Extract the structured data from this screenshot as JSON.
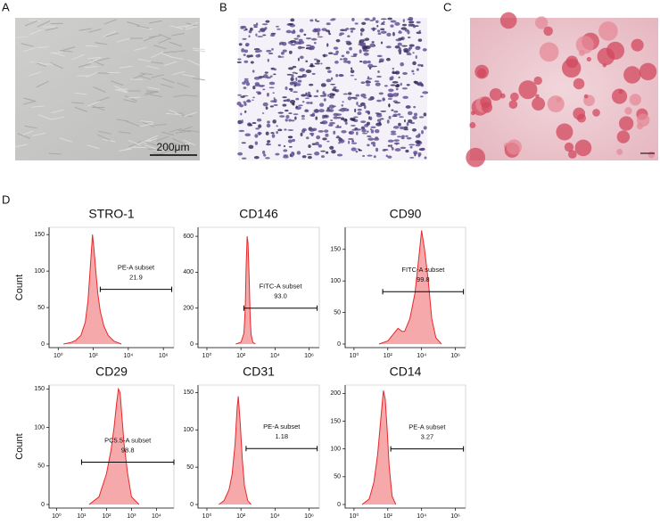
{
  "panel_labels": [
    "A",
    "B",
    "C",
    "D"
  ],
  "scale_bar": "200μm",
  "chart_data": [
    {
      "type": "histogram",
      "title": "STRO-1",
      "ylabel": "Count",
      "color": "#e8282b",
      "xscale": "log",
      "x": [
        2,
        5,
        10,
        20,
        35,
        50,
        70,
        90,
        110,
        140,
        180,
        250,
        400,
        700,
        1500,
        4000
      ],
      "values": [
        0,
        2,
        5,
        12,
        30,
        60,
        110,
        150,
        130,
        100,
        70,
        45,
        25,
        12,
        4,
        0
      ],
      "xlim": [
        0.3,
        4000000
      ],
      "ylim": [
        0,
        160
      ],
      "yticks": [
        0,
        50,
        100,
        150
      ],
      "xticks": [
        {
          "value": 1,
          "label": "10⁰"
        },
        {
          "value": 100,
          "label": "10²"
        },
        {
          "value": 10000,
          "label": "10⁴"
        },
        {
          "value": 1000000,
          "label": "10⁶"
        }
      ],
      "gate": {
        "name": "PE-A subset",
        "value": 21.9,
        "range": [
          250,
          3000000
        ],
        "y": 75
      }
    },
    {
      "type": "histogram",
      "title": "CD146",
      "color": "#e8282b",
      "xscale": "log",
      "x": [
        50,
        100,
        150,
        180,
        200,
        230,
        260,
        300,
        350,
        400,
        500,
        700
      ],
      "values": [
        0,
        10,
        60,
        200,
        420,
        600,
        560,
        380,
        150,
        50,
        10,
        0
      ],
      "xlim": [
        0.3,
        4000000
      ],
      "ylim": [
        0,
        650
      ],
      "yticks": [
        0,
        200,
        400,
        600
      ],
      "xticks": [
        {
          "value": 1,
          "label": "10⁰"
        },
        {
          "value": 100,
          "label": "10²"
        },
        {
          "value": 10000,
          "label": "10⁴"
        },
        {
          "value": 1000000,
          "label": "10⁶"
        }
      ],
      "gate": {
        "name": "FITC-A subset",
        "value": 93,
        "value_label": "93.0",
        "range": [
          150,
          3000000
        ],
        "y": 200
      }
    },
    {
      "type": "histogram",
      "title": "CD90",
      "color": "#e8282b",
      "xscale": "log",
      "x": [
        30,
        100,
        200,
        400,
        700,
        1000,
        2000,
        4000,
        7000,
        10000,
        15000,
        25000,
        40000,
        70000,
        150000
      ],
      "values": [
        0,
        5,
        15,
        25,
        20,
        20,
        40,
        80,
        140,
        180,
        150,
        100,
        40,
        10,
        0
      ],
      "xlim": [
        0.3,
        4000000
      ],
      "ylim": [
        0,
        185
      ],
      "yticks": [
        0,
        50,
        100,
        150
      ],
      "xticks": [
        {
          "value": 1,
          "label": "10⁰"
        },
        {
          "value": 100,
          "label": "10²"
        },
        {
          "value": 10000,
          "label": "10⁴"
        },
        {
          "value": 1000000,
          "label": "10⁶"
        }
      ],
      "gate": {
        "name": "FITC-A subset",
        "value": 99.8,
        "range": [
          50,
          3000000
        ],
        "y": 83
      }
    },
    {
      "type": "histogram",
      "title": "CD29",
      "ylabel": "Count",
      "color": "#e8282b",
      "xscale": "log",
      "x": [
        20,
        50,
        100,
        150,
        200,
        250,
        300,
        350,
        400,
        500,
        700,
        1000,
        2000
      ],
      "values": [
        0,
        10,
        40,
        70,
        100,
        130,
        150,
        145,
        120,
        80,
        40,
        10,
        0
      ],
      "xlim": [
        0.5,
        50000
      ],
      "ylim": [
        0,
        155
      ],
      "yticks": [
        0,
        50,
        100,
        150
      ],
      "xticks": [
        {
          "value": 1,
          "label": "10⁰"
        },
        {
          "value": 10,
          "label": "10¹"
        },
        {
          "value": 100,
          "label": "10²"
        },
        {
          "value": 1000,
          "label": "10³"
        },
        {
          "value": 10000,
          "label": "10⁴"
        }
      ],
      "gate": {
        "name": "PC5.5-A subset",
        "value": 98.8,
        "range": [
          10,
          50000
        ],
        "y": 55
      }
    },
    {
      "type": "histogram",
      "title": "CD31",
      "color": "#e8282b",
      "xscale": "log",
      "x": [
        5,
        10,
        20,
        30,
        45,
        60,
        70,
        90,
        120,
        160,
        250,
        400
      ],
      "values": [
        0,
        5,
        20,
        40,
        80,
        130,
        145,
        110,
        60,
        25,
        5,
        0
      ],
      "xlim": [
        0.3,
        4000000
      ],
      "ylim": [
        0,
        160
      ],
      "yticks": [
        0,
        50,
        100,
        150
      ],
      "xticks": [
        {
          "value": 1,
          "label": "10⁰"
        },
        {
          "value": 100,
          "label": "10²"
        },
        {
          "value": 10000,
          "label": "10⁴"
        },
        {
          "value": 1000000,
          "label": "10⁶"
        }
      ],
      "gate": {
        "name": "PE-A subset",
        "value": 1.18,
        "range": [
          200,
          3000000
        ],
        "y": 75
      }
    },
    {
      "type": "histogram",
      "title": "CD14",
      "color": "#e8282b",
      "xscale": "log",
      "x": [
        3,
        8,
        15,
        25,
        40,
        55,
        70,
        90,
        120,
        180,
        300
      ],
      "values": [
        0,
        10,
        40,
        90,
        160,
        205,
        190,
        140,
        70,
        15,
        0
      ],
      "xlim": [
        0.3,
        4000000
      ],
      "ylim": [
        0,
        215
      ],
      "yticks": [
        0,
        50,
        100,
        150,
        200
      ],
      "xticks": [
        {
          "value": 1,
          "label": "10⁰"
        },
        {
          "value": 100,
          "label": "10²"
        },
        {
          "value": 10000,
          "label": "10⁴"
        },
        {
          "value": 1000000,
          "label": "10⁶"
        }
      ],
      "gate": {
        "name": "PE-A subset",
        "value": 3.27,
        "range": [
          150,
          3000000
        ],
        "y": 100
      }
    }
  ]
}
